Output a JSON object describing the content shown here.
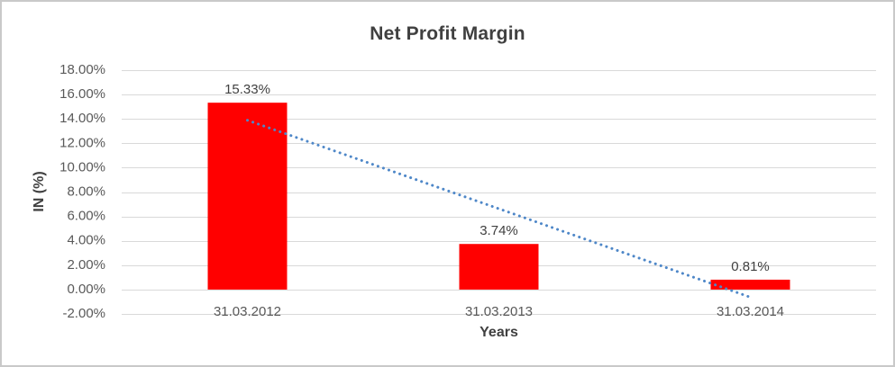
{
  "window": {
    "background": "#ffffff",
    "frame_border_color": "#c9c9c9"
  },
  "chart_data": {
    "type": "bar",
    "title": "Net Profit Margin",
    "xlabel": "Years",
    "ylabel": "IN (%)",
    "categories": [
      "31.03.2012",
      "31.03.2013",
      "31.03.2014"
    ],
    "values": [
      15.33,
      3.74,
      0.81
    ],
    "value_labels": [
      "15.33%",
      "3.74%",
      "0.81%"
    ],
    "ylim": [
      -2,
      18
    ],
    "ytick_step": 2,
    "yticks": [
      "18.00%",
      "16.00%",
      "14.00%",
      "12.00%",
      "10.00%",
      "8.00%",
      "6.00%",
      "4.00%",
      "2.00%",
      "0.00%",
      "-2.00%"
    ],
    "ytick_values": [
      18,
      16,
      14,
      12,
      10,
      8,
      6,
      4,
      2,
      0,
      -2
    ],
    "grid": true,
    "legend": false,
    "bar_color": "#ff0000",
    "gridline_color": "#d9d9d9",
    "title_color": "#404040",
    "tick_color": "#595959",
    "trendline": {
      "style": "dotted",
      "color": "#4e87c8",
      "start_value": 13.89,
      "end_value": -0.63
    }
  }
}
